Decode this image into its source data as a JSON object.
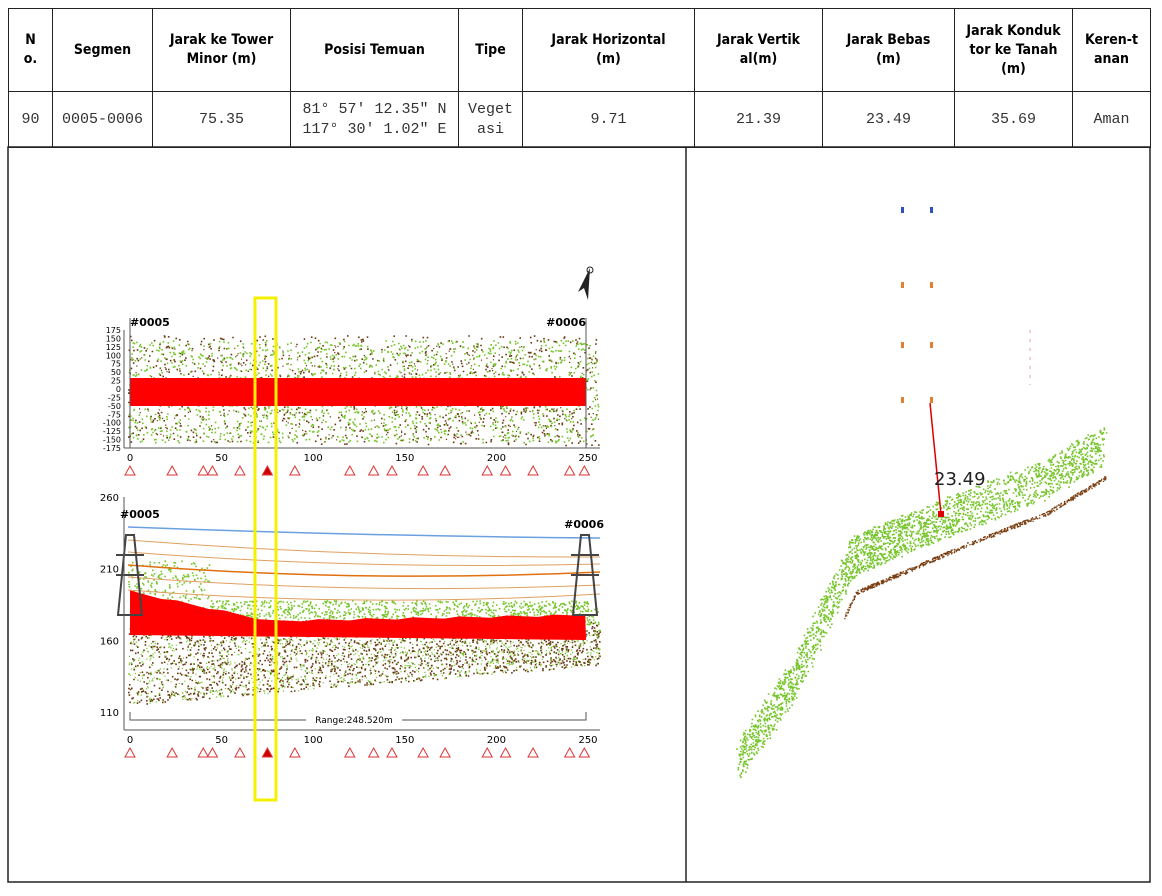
{
  "table": {
    "headers": [
      "No.",
      "Segmen",
      "Jarak ke Tower Minor (m)",
      "Posisi Temuan",
      "Tipe",
      "Jarak Horizontal (m)",
      "Jarak Vertikal(m)",
      "Jarak Bebas (m)",
      "Jarak Konduktor ke Tanah(m)",
      "Keren-tanan"
    ],
    "rows": [
      [
        "90",
        "0005-0006",
        "75.35",
        [
          "81° 57′ 12.35″ N",
          "117° 30′ 1.02″ E"
        ],
        "Vegetasi",
        "9.71",
        "21.39",
        "23.49",
        "35.69",
        "Aman"
      ]
    ]
  },
  "top_view": {
    "start_tower": "#0005",
    "end_tower": "#0006",
    "y_ticks": [
      175,
      150,
      125,
      100,
      75,
      50,
      25,
      0,
      -25,
      -50,
      -75,
      -100,
      -125,
      -150,
      -175
    ],
    "x_ticks": [
      0,
      50,
      100,
      150,
      200,
      250
    ]
  },
  "profile_view": {
    "start_tower": "#0005",
    "end_tower": "#0006",
    "y_ticks": [
      260,
      210,
      160,
      110
    ],
    "x_ticks": [
      0,
      50,
      100,
      150,
      200,
      250
    ],
    "range_label": "Range:248.520m"
  },
  "cross_section": {
    "clearance_label": "23.49"
  }
}
